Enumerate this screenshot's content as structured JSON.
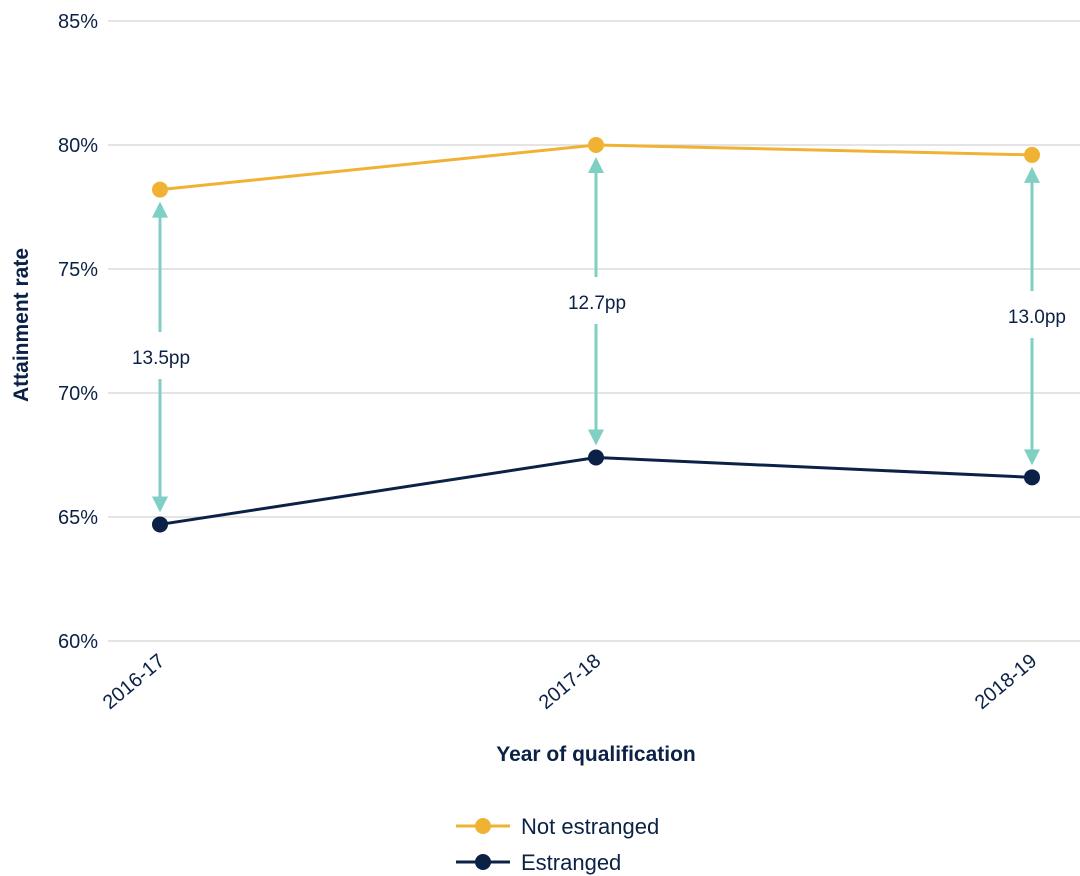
{
  "chart_data": {
    "type": "line",
    "title": "",
    "xlabel": "Year of qualification",
    "ylabel": "Attainment rate",
    "categories": [
      "2016-17",
      "2017-18",
      "2018-19"
    ],
    "ylim": [
      60,
      85
    ],
    "yticks": [
      60,
      65,
      70,
      75,
      80,
      85
    ],
    "ytick_labels": [
      "60%",
      "65%",
      "70%",
      "75%",
      "80%",
      "85%"
    ],
    "grid": "horizontal",
    "legend_position": "bottom-center",
    "series": [
      {
        "name": "Not estranged",
        "values": [
          78.2,
          80.0,
          79.6
        ],
        "color": "#f0b232"
      },
      {
        "name": "Estranged",
        "values": [
          64.7,
          67.4,
          66.6
        ],
        "color": "#0b2145"
      }
    ],
    "gap_labels": [
      "13.5pp",
      "12.7pp",
      "13.0pp"
    ],
    "gap_color": "#7fd0c2"
  }
}
